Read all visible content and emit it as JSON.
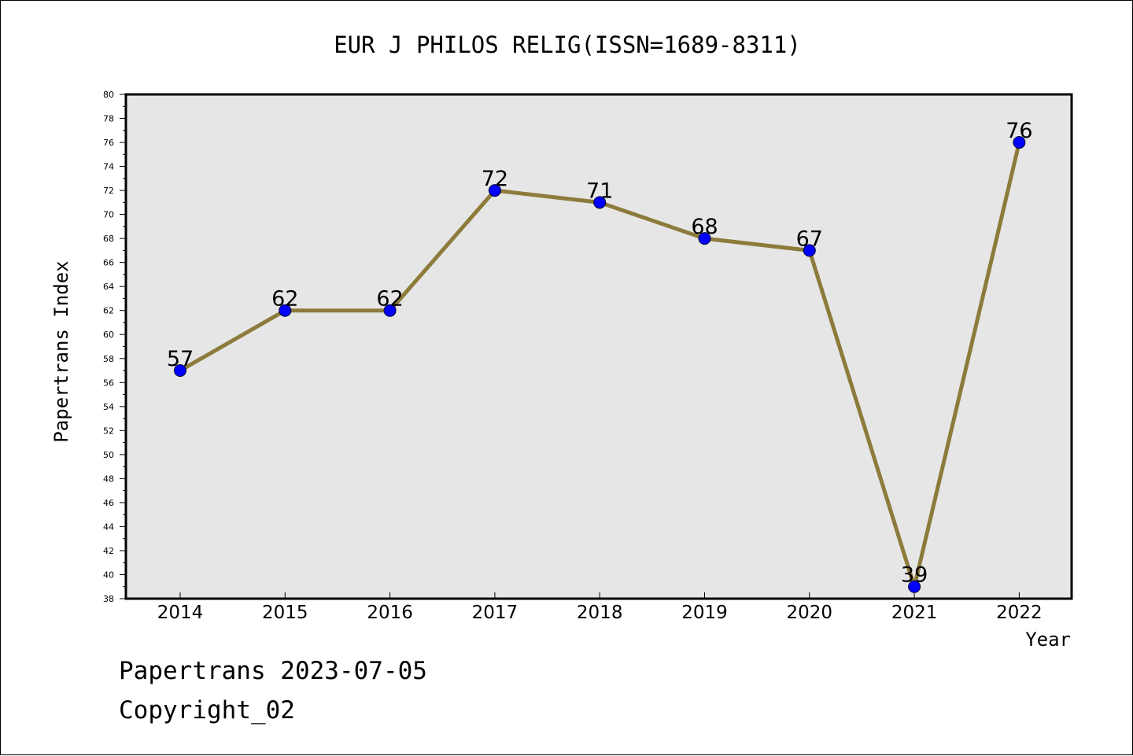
{
  "chart_data": {
    "type": "line",
    "title": "EUR J PHILOS RELIG(ISSN=1689-8311)",
    "xlabel": "Year",
    "ylabel": "Papertrans Index",
    "x": [
      "2014",
      "2015",
      "2016",
      "2017",
      "2018",
      "2019",
      "2020",
      "2021",
      "2022"
    ],
    "series": [
      {
        "values": [
          57,
          62,
          62,
          72,
          71,
          68,
          67,
          39,
          76
        ]
      }
    ],
    "ylim": [
      38,
      80
    ],
    "yticks": [
      38,
      40,
      42,
      44,
      46,
      48,
      50,
      52,
      54,
      56,
      58,
      60,
      62,
      64,
      66,
      68,
      70,
      72,
      74,
      76,
      78,
      80
    ],
    "grid": false,
    "legend": "none",
    "colors": {
      "line": "#8c7b3b",
      "marker": "#0000ff",
      "plot_bg": "#e6e6e6",
      "axes": "#000000"
    }
  },
  "footer": {
    "date_text": "Papertrans 2023-07-05",
    "copyright_text": "Copyright_02"
  }
}
